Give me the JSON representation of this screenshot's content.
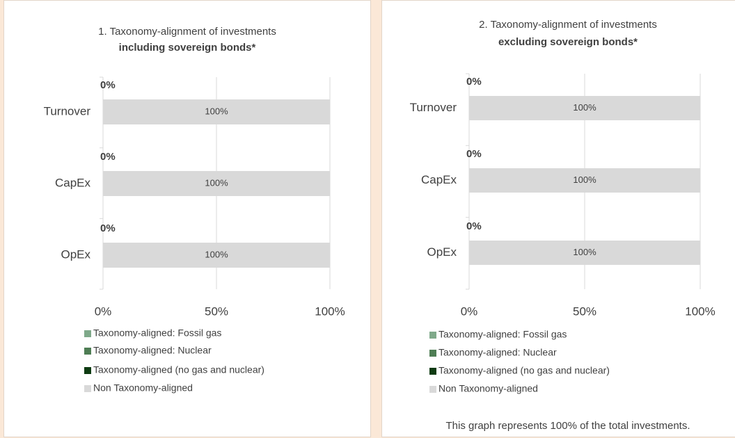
{
  "chart_data": [
    {
      "type": "stacked_bar_horizontal",
      "title": "1. Taxonomy-alignment of investments",
      "subtitle": "including sovereign bonds*",
      "categories": [
        "Turnover",
        "CapEx",
        "OpEx"
      ],
      "series": [
        {
          "name": "Taxonomy-aligned: Fossil gas",
          "color": "#7fa98a",
          "values": [
            0,
            0,
            0
          ]
        },
        {
          "name": "Taxonomy-aligned: Nuclear",
          "color": "#4e7d54",
          "values": [
            0,
            0,
            0
          ]
        },
        {
          "name": "Taxonomy-aligned (no gas and nuclear)",
          "color": "#0e3b12",
          "values": [
            0,
            0,
            0
          ],
          "value_labels": [
            "0%",
            "0%",
            "0%"
          ]
        },
        {
          "name": "Non Taxonomy-aligned",
          "color": "#d9d9d9",
          "values": [
            100,
            100,
            100
          ],
          "value_labels": [
            "100%",
            "100%",
            "100%"
          ]
        }
      ],
      "xlim": [
        0,
        100
      ],
      "xticks": [
        {
          "value": 0,
          "label": "0%"
        },
        {
          "value": 50,
          "label": "50%"
        },
        {
          "value": 100,
          "label": "100%"
        }
      ],
      "grid": true
    },
    {
      "type": "stacked_bar_horizontal",
      "title": "2. Taxonomy-alignment of investments",
      "subtitle": "excluding sovereign bonds*",
      "categories": [
        "Turnover",
        "CapEx",
        "OpEx"
      ],
      "series": [
        {
          "name": "Taxonomy-aligned: Fossil gas",
          "color": "#7fa98a",
          "values": [
            0,
            0,
            0
          ]
        },
        {
          "name": "Taxonomy-aligned: Nuclear",
          "color": "#4e7d54",
          "values": [
            0,
            0,
            0
          ]
        },
        {
          "name": "Taxonomy-aligned (no gas and nuclear)",
          "color": "#0e3b12",
          "values": [
            0,
            0,
            0
          ],
          "value_labels": [
            "0%",
            "0%",
            "0%"
          ]
        },
        {
          "name": "Non Taxonomy-aligned",
          "color": "#d9d9d9",
          "values": [
            100,
            100,
            100
          ],
          "value_labels": [
            "100%",
            "100%",
            "100%"
          ]
        }
      ],
      "xlim": [
        0,
        100
      ],
      "xticks": [
        {
          "value": 0,
          "label": "0%"
        },
        {
          "value": 50,
          "label": "50%"
        },
        {
          "value": 100,
          "label": "100%"
        }
      ],
      "grid": true,
      "annotation": "This graph represents 100% of the total investments."
    }
  ]
}
